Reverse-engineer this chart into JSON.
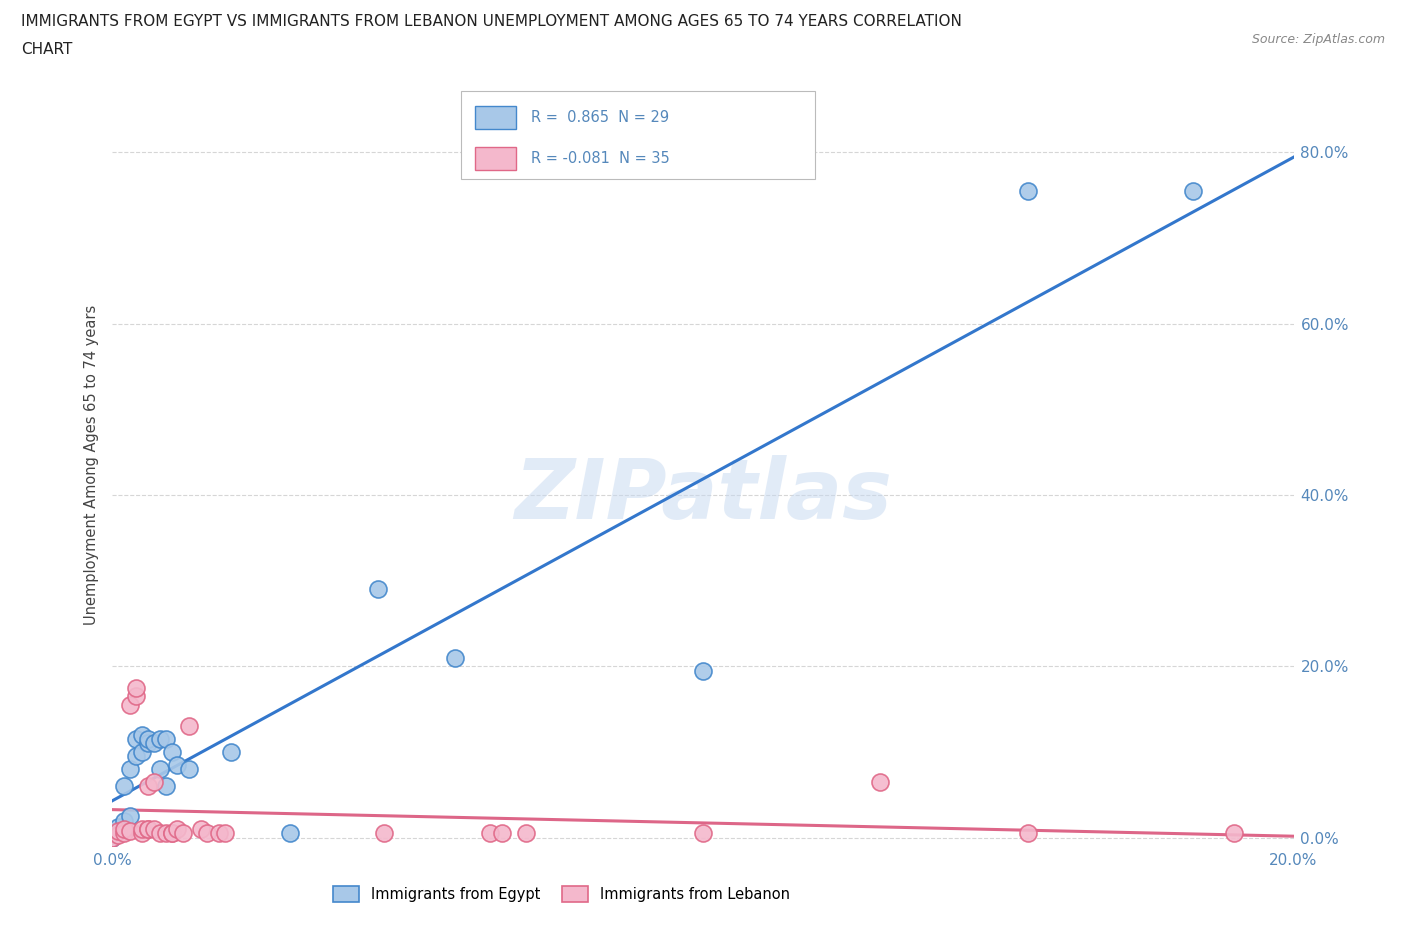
{
  "title_line1": "IMMIGRANTS FROM EGYPT VS IMMIGRANTS FROM LEBANON UNEMPLOYMENT AMONG AGES 65 TO 74 YEARS CORRELATION",
  "title_line2": "CHART",
  "source_text": "Source: ZipAtlas.com",
  "ylabel": "Unemployment Among Ages 65 to 74 years",
  "watermark": "ZIPatlas",
  "xlim": [
    0.0,
    0.2
  ],
  "ylim": [
    -0.01,
    0.88
  ],
  "ytick_labels": [
    "0.0%",
    "20.0%",
    "40.0%",
    "60.0%",
    "80.0%"
  ],
  "ytick_values": [
    0.0,
    0.2,
    0.4,
    0.6,
    0.8
  ],
  "xtick_labels": [
    "0.0%",
    "20.0%"
  ],
  "xtick_values": [
    0.0,
    0.2
  ],
  "egypt_R": 0.865,
  "egypt_N": 29,
  "lebanon_R": -0.081,
  "lebanon_N": 35,
  "egypt_color": "#a8c8e8",
  "lebanon_color": "#f4b8cc",
  "egypt_edge_color": "#4488cc",
  "lebanon_edge_color": "#e06888",
  "egypt_line_color": "#3377cc",
  "lebanon_line_color": "#dd6688",
  "background_color": "#ffffff",
  "grid_color": "#cccccc",
  "title_color": "#222222",
  "axis_label_color": "#5588bb",
  "ylabel_color": "#444444",
  "egypt_x": [
    0.0,
    0.001,
    0.001,
    0.002,
    0.002,
    0.002,
    0.003,
    0.003,
    0.004,
    0.004,
    0.005,
    0.005,
    0.006,
    0.006,
    0.007,
    0.008,
    0.008,
    0.009,
    0.009,
    0.01,
    0.011,
    0.013,
    0.02,
    0.03,
    0.045,
    0.058,
    0.1,
    0.155,
    0.183
  ],
  "egypt_y": [
    0.0,
    0.005,
    0.012,
    0.008,
    0.02,
    0.06,
    0.025,
    0.08,
    0.095,
    0.115,
    0.1,
    0.12,
    0.11,
    0.115,
    0.11,
    0.08,
    0.115,
    0.06,
    0.115,
    0.1,
    0.085,
    0.08,
    0.1,
    0.005,
    0.29,
    0.21,
    0.195,
    0.755,
    0.755
  ],
  "lebanon_x": [
    0.0,
    0.001,
    0.001,
    0.002,
    0.002,
    0.003,
    0.003,
    0.004,
    0.004,
    0.005,
    0.005,
    0.006,
    0.006,
    0.006,
    0.007,
    0.007,
    0.008,
    0.009,
    0.01,
    0.01,
    0.011,
    0.012,
    0.013,
    0.015,
    0.016,
    0.018,
    0.019,
    0.046,
    0.064,
    0.066,
    0.07,
    0.1,
    0.13,
    0.155,
    0.19
  ],
  "lebanon_y": [
    0.0,
    0.003,
    0.008,
    0.005,
    0.01,
    0.008,
    0.155,
    0.165,
    0.175,
    0.005,
    0.01,
    0.01,
    0.06,
    0.01,
    0.065,
    0.01,
    0.005,
    0.005,
    0.005,
    0.005,
    0.01,
    0.005,
    0.13,
    0.01,
    0.005,
    0.005,
    0.005,
    0.005,
    0.005,
    0.005,
    0.005,
    0.005,
    0.065,
    0.005,
    0.005
  ]
}
